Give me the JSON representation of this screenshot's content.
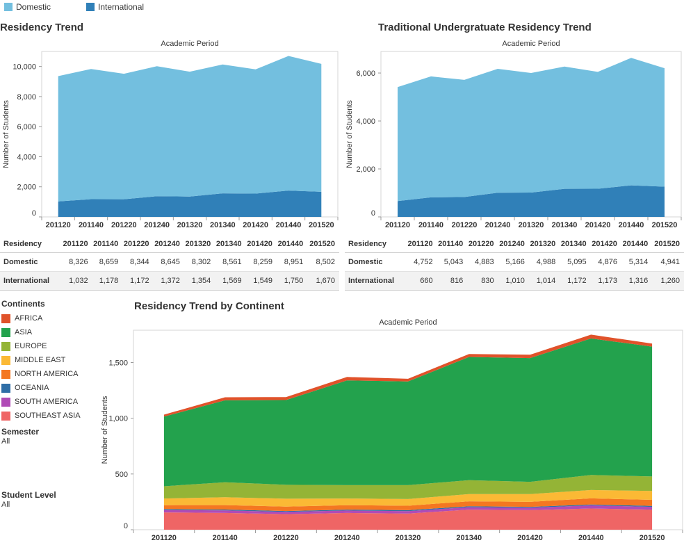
{
  "legend": {
    "domestic_label": "Domestic",
    "international_label": "International",
    "domestic_color": "#73bfdf",
    "international_color": "#3080b8"
  },
  "left_panel": {
    "title": "Residency Trend"
  },
  "right_panel": {
    "title": "Traditional Undergratuate Residency Trend"
  },
  "bottom_panel": {
    "title": "Residency Trend by Continent"
  },
  "axis": {
    "x_title": "Academic Period",
    "y_title": "Number of Students"
  },
  "filters": {
    "continents_title": "Continents",
    "semester_title": "Semester",
    "semester_value": "All",
    "student_level_title": "Student Level",
    "student_level_value": "All"
  },
  "tables": {
    "header_label": "Residency",
    "left": {
      "periods": [
        "201120",
        "201140",
        "201220",
        "201240",
        "201320",
        "201340",
        "201420",
        "201440",
        "201520"
      ],
      "rows": [
        {
          "label": "Domestic",
          "values": [
            "8,326",
            "8,659",
            "8,344",
            "8,645",
            "8,302",
            "8,561",
            "8,259",
            "8,951",
            "8,502"
          ]
        },
        {
          "label": "International",
          "values": [
            "1,032",
            "1,178",
            "1,172",
            "1,372",
            "1,354",
            "1,569",
            "1,549",
            "1,750",
            "1,670"
          ]
        }
      ]
    },
    "right": {
      "periods": [
        "201120",
        "201140",
        "201220",
        "201240",
        "201320",
        "201340",
        "201420",
        "201440",
        "201520"
      ],
      "rows": [
        {
          "label": "Domestic",
          "values": [
            "4,752",
            "5,043",
            "4,883",
            "5,166",
            "4,988",
            "5,095",
            "4,876",
            "5,314",
            "4,941"
          ]
        },
        {
          "label": "International",
          "values": [
            "660",
            "816",
            "830",
            "1,010",
            "1,014",
            "1,172",
            "1,173",
            "1,316",
            "1,260"
          ]
        }
      ]
    }
  },
  "chart_data": [
    {
      "type": "area",
      "stacked": true,
      "title": "Residency Trend",
      "xlabel": "Academic Period",
      "ylabel": "Number of Students",
      "categories": [
        "201120",
        "201140",
        "201220",
        "201240",
        "201320",
        "201340",
        "201420",
        "201440",
        "201520"
      ],
      "ylim": [
        0,
        11000
      ],
      "yticks": [
        0,
        2000,
        4000,
        6000,
        8000,
        10000
      ],
      "ytick_labels": [
        "0",
        "2,000",
        "4,000",
        "6,000",
        "8,000",
        "10,000"
      ],
      "series": [
        {
          "name": "International",
          "color": "#3080b8",
          "values": [
            1032,
            1178,
            1172,
            1372,
            1354,
            1569,
            1549,
            1750,
            1670
          ]
        },
        {
          "name": "Domestic",
          "color": "#73bfdf",
          "values": [
            8326,
            8659,
            8344,
            8645,
            8302,
            8561,
            8259,
            8951,
            8502
          ]
        }
      ]
    },
    {
      "type": "area",
      "stacked": true,
      "title": "Traditional Undergratuate Residency Trend",
      "xlabel": "Academic Period",
      "ylabel": "Number of Students",
      "categories": [
        "201120",
        "201140",
        "201220",
        "201240",
        "201320",
        "201340",
        "201420",
        "201440",
        "201520"
      ],
      "ylim": [
        0,
        6900
      ],
      "yticks": [
        0,
        2000,
        4000,
        6000
      ],
      "ytick_labels": [
        "0",
        "2,000",
        "4,000",
        "6,000"
      ],
      "series": [
        {
          "name": "International",
          "color": "#3080b8",
          "values": [
            660,
            816,
            830,
            1010,
            1014,
            1172,
            1173,
            1316,
            1260
          ]
        },
        {
          "name": "Domestic",
          "color": "#73bfdf",
          "values": [
            4752,
            5043,
            4883,
            5166,
            4988,
            5095,
            4876,
            5314,
            4941
          ]
        }
      ]
    },
    {
      "type": "area",
      "stacked": true,
      "title": "Residency Trend by Continent",
      "xlabel": "Academic Period",
      "ylabel": "Number of Students",
      "categories": [
        "201120",
        "201140",
        "201220",
        "201240",
        "201320",
        "201340",
        "201420",
        "201440",
        "201520"
      ],
      "ylim": [
        0,
        1790
      ],
      "yticks": [
        0,
        500,
        1000,
        1500
      ],
      "ytick_labels": [
        "0",
        "500",
        "1,000",
        "1,500"
      ],
      "series": [
        {
          "name": "SOUTHEAST ASIA",
          "color": "#ef6565",
          "values": [
            155,
            150,
            140,
            150,
            145,
            180,
            175,
            190,
            180
          ]
        },
        {
          "name": "SOUTH AMERICA",
          "color": "#b04bb6",
          "values": [
            22,
            23,
            20,
            22,
            22,
            22,
            22,
            28,
            25
          ]
        },
        {
          "name": "OCEANIA",
          "color": "#2f6ea6",
          "values": [
            8,
            8,
            8,
            8,
            8,
            8,
            8,
            8,
            8
          ]
        },
        {
          "name": "NORTH AMERICA",
          "color": "#f47721",
          "values": [
            35,
            40,
            40,
            40,
            40,
            45,
            45,
            55,
            55
          ]
        },
        {
          "name": "MIDDLE EAST",
          "color": "#fbb935",
          "values": [
            60,
            70,
            70,
            60,
            60,
            65,
            70,
            75,
            80
          ]
        },
        {
          "name": "EUROPE",
          "color": "#94b436",
          "values": [
            110,
            135,
            125,
            120,
            125,
            125,
            110,
            135,
            130
          ]
        },
        {
          "name": "ASIA",
          "color": "#23a24d",
          "values": [
            625,
            735,
            760,
            940,
            930,
            1105,
            1110,
            1225,
            1165
          ]
        },
        {
          "name": "AFRICA",
          "color": "#e0522a",
          "values": [
            17,
            27,
            27,
            30,
            24,
            27,
            30,
            34,
            27
          ]
        }
      ]
    }
  ]
}
